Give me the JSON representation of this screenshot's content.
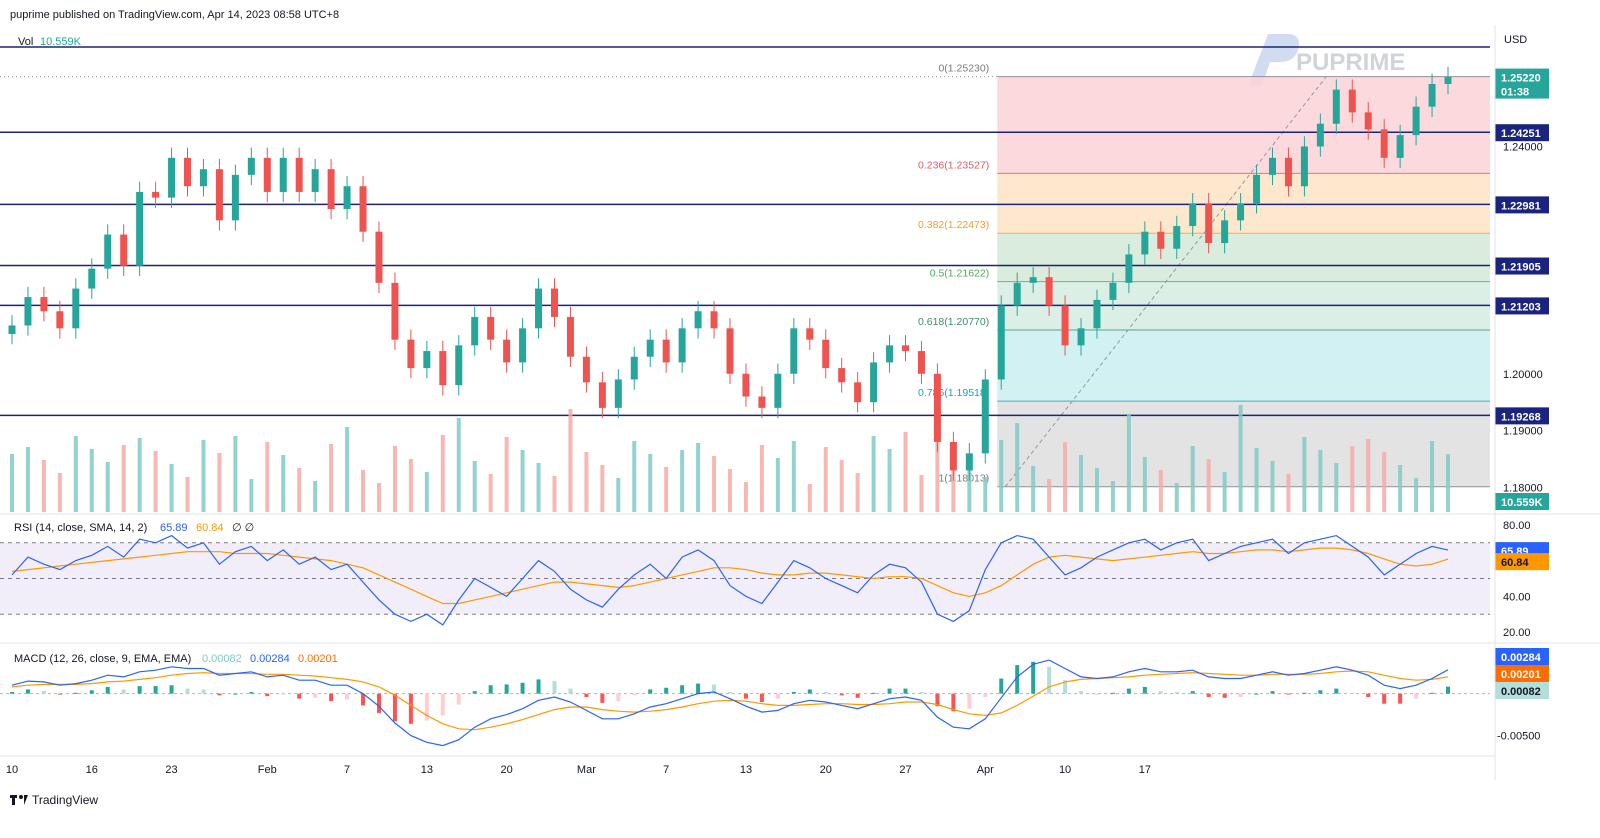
{
  "header": {
    "published": "puprime published on TradingView.com, Apr 14, 2023 08:58 UTC+8"
  },
  "footer": {
    "brand": "TradingView"
  },
  "watermark": {
    "text": "PUPRIME"
  },
  "colors": {
    "up": "#26a69a",
    "down": "#ef5350",
    "level_line": "#1a237e",
    "rsi_line": "#2962ff",
    "sma_line": "#ff9800",
    "macd_line": "#2962ff",
    "signal_line": "#ff9800"
  },
  "chart_data": [
    {
      "type": "candlestick",
      "pane": "price",
      "currency": "USD",
      "ylim": [
        1.1755,
        1.2612
      ],
      "y_ticks": [
        "1.24000",
        "1.20000",
        "1.19000",
        "1.18000"
      ],
      "y_tick_values": [
        1.24,
        1.2,
        1.19,
        1.18
      ],
      "x_ticks": [
        "10",
        "16",
        "23",
        "Feb",
        "7",
        "13",
        "20",
        "Mar",
        "7",
        "13",
        "20",
        "27",
        "Apr",
        "10",
        "17"
      ],
      "x_tick_index": [
        0,
        5,
        10,
        16,
        21,
        26,
        31,
        36,
        41,
        46,
        51,
        56,
        61,
        66,
        71
      ],
      "close_series": [
        1.2085,
        1.2135,
        1.211,
        1.208,
        1.215,
        1.2185,
        1.2245,
        1.219,
        1.232,
        1.231,
        1.238,
        1.233,
        1.236,
        1.227,
        1.235,
        1.238,
        1.232,
        1.238,
        1.232,
        1.236,
        1.229,
        1.233,
        1.225,
        1.216,
        1.206,
        1.201,
        1.204,
        1.198,
        1.205,
        1.21,
        1.206,
        1.202,
        1.208,
        1.215,
        1.21,
        1.203,
        1.1985,
        1.194,
        1.199,
        1.203,
        1.206,
        1.202,
        1.208,
        1.211,
        1.208,
        1.2,
        1.196,
        1.194,
        1.2,
        1.208,
        1.206,
        1.201,
        1.1985,
        1.195,
        1.202,
        1.205,
        1.204,
        1.2,
        1.188,
        1.183,
        1.186,
        1.199,
        1.212,
        1.216,
        1.217,
        1.212,
        1.205,
        1.208,
        1.213,
        1.216,
        1.221,
        1.225,
        1.222,
        1.226,
        1.23,
        1.223,
        1.227,
        1.23,
        1.235,
        1.238,
        1.233,
        1.24,
        1.244,
        1.25,
        1.246,
        1.243,
        1.238,
        1.242,
        1.247,
        1.251,
        1.2522
      ],
      "last_price": "1.25220",
      "last_countdown": "01:38",
      "price_levels": [
        {
          "label": "1.24251",
          "value": 1.24251
        },
        {
          "label": "1.22981",
          "value": 1.22981
        },
        {
          "label": "1.21905",
          "value": 1.21905
        },
        {
          "label": "1.21203",
          "value": 1.21203
        },
        {
          "label": "1.19268",
          "value": 1.19268
        }
      ],
      "top_line_value": 1.2575,
      "fibonacci": [
        {
          "label": "0(1.25230)",
          "ratio": 0,
          "value": 1.2523
        },
        {
          "label": "0.236(1.23527)",
          "ratio": 0.236,
          "value": 1.23527
        },
        {
          "label": "0.382(1.22473)",
          "ratio": 0.382,
          "value": 1.22473
        },
        {
          "label": "0.5(1.21622)",
          "ratio": 0.5,
          "value": 1.21622
        },
        {
          "label": "0.618(1.20770)",
          "ratio": 0.618,
          "value": 1.2077
        },
        {
          "label": "0.786(1.19518)",
          "ratio": 0.786,
          "value": 1.19518
        },
        {
          "label": "1(1.18013)",
          "ratio": 1,
          "value": 1.18013
        }
      ],
      "fib_zone_colors": [
        "#fbd5d8",
        "#fde5c8",
        "#d6ead9",
        "#d7ede4",
        "#cdeff1",
        "#e0e0e0"
      ],
      "fib_label_colors": [
        "#787b86",
        "#e05b67",
        "#f59d2a",
        "#4caf50",
        "#3d8f6a",
        "#17a2b8",
        "#787b86"
      ],
      "fib_start_index": 62
    },
    {
      "type": "bar",
      "pane": "volume",
      "legend": "Vol",
      "legend_value": "10.559K",
      "last_label": "10.559K"
    },
    {
      "type": "line",
      "pane": "rsi",
      "legend": "RSI (14, close, SMA, 14, 2)",
      "legend_rsi": "65.89",
      "legend_sma": "60.84",
      "legend_extra": "∅ ∅",
      "ylim": [
        15,
        85
      ],
      "y_ticks": [
        "80.00",
        "40.00",
        "20.00"
      ],
      "y_tick_values": [
        80,
        40,
        20
      ],
      "band": [
        30,
        70
      ],
      "rsi": [
        52,
        62,
        58,
        55,
        60,
        63,
        68,
        62,
        72,
        70,
        74,
        67,
        70,
        58,
        65,
        68,
        60,
        66,
        58,
        62,
        55,
        58,
        48,
        38,
        30,
        26,
        30,
        24,
        38,
        50,
        45,
        40,
        50,
        60,
        54,
        44,
        38,
        34,
        44,
        52,
        58,
        50,
        62,
        66,
        60,
        46,
        40,
        36,
        48,
        60,
        56,
        50,
        46,
        42,
        52,
        58,
        56,
        48,
        30,
        26,
        32,
        55,
        70,
        74,
        72,
        62,
        52,
        56,
        62,
        66,
        70,
        72,
        66,
        70,
        72,
        60,
        64,
        68,
        70,
        72,
        64,
        70,
        72,
        74,
        68,
        62,
        52,
        58,
        64,
        68,
        65.89
      ],
      "sma": [
        54,
        55,
        56,
        57,
        58,
        59,
        60,
        61,
        62,
        63,
        64,
        65,
        65,
        65,
        64,
        64,
        64,
        63,
        62,
        61,
        60,
        58,
        56,
        52,
        48,
        44,
        40,
        36,
        36,
        38,
        40,
        42,
        44,
        46,
        48,
        48,
        47,
        46,
        45,
        46,
        48,
        50,
        52,
        54,
        56,
        56,
        55,
        53,
        52,
        52,
        53,
        53,
        52,
        51,
        50,
        51,
        51,
        50,
        46,
        42,
        40,
        42,
        46,
        52,
        58,
        62,
        63,
        62,
        61,
        60,
        61,
        62,
        63,
        64,
        65,
        64,
        64,
        65,
        66,
        66,
        65,
        66,
        67,
        67,
        66,
        64,
        61,
        58,
        57,
        58,
        60.84
      ],
      "last_rsi_label": "65.89",
      "last_sma_label": "60.84"
    },
    {
      "type": "line",
      "pane": "macd",
      "legend": "MACD (12, 26, close, 9, EMA, EMA)",
      "legend_hist": "0.00082",
      "legend_macd": "0.00284",
      "legend_signal": "0.00201",
      "ylim": [
        -0.0072,
        0.0058
      ],
      "y_ticks": [
        "-0.00500"
      ],
      "y_tick_values": [
        -0.005
      ],
      "macd": [
        0.001,
        0.0015,
        0.0014,
        0.001,
        0.0012,
        0.0016,
        0.0022,
        0.002,
        0.0026,
        0.0028,
        0.0032,
        0.003,
        0.003,
        0.0022,
        0.0024,
        0.0026,
        0.002,
        0.0022,
        0.0016,
        0.0016,
        0.001,
        0.001,
        0.0,
        -0.0015,
        -0.0035,
        -0.005,
        -0.0058,
        -0.0062,
        -0.0055,
        -0.004,
        -0.003,
        -0.0025,
        -0.0018,
        -0.0008,
        -0.0004,
        -0.001,
        -0.002,
        -0.003,
        -0.003,
        -0.0024,
        -0.0016,
        -0.0012,
        -0.0006,
        0.0,
        0.0002,
        -0.0006,
        -0.0015,
        -0.0022,
        -0.002,
        -0.0012,
        -0.0008,
        -0.001,
        -0.0014,
        -0.0018,
        -0.0012,
        -0.0006,
        -0.0004,
        -0.0008,
        -0.0028,
        -0.004,
        -0.0042,
        -0.003,
        -0.0005,
        0.002,
        0.0035,
        0.004,
        0.003,
        0.002,
        0.0018,
        0.002,
        0.0026,
        0.003,
        0.0026,
        0.0026,
        0.0028,
        0.002,
        0.0018,
        0.0018,
        0.0022,
        0.0026,
        0.0022,
        0.0024,
        0.0028,
        0.0032,
        0.0028,
        0.0022,
        0.001,
        0.0006,
        0.001,
        0.0018,
        0.00284
      ],
      "signal": [
        0.0008,
        0.001,
        0.0011,
        0.0011,
        0.0011,
        0.0012,
        0.0014,
        0.0015,
        0.0017,
        0.0019,
        0.0022,
        0.0024,
        0.0025,
        0.0024,
        0.0024,
        0.0024,
        0.0023,
        0.0023,
        0.0022,
        0.0021,
        0.0019,
        0.0017,
        0.0014,
        0.0008,
        -0.0002,
        -0.0014,
        -0.0026,
        -0.0036,
        -0.0042,
        -0.0043,
        -0.004,
        -0.0036,
        -0.0031,
        -0.0025,
        -0.0019,
        -0.0016,
        -0.0016,
        -0.0019,
        -0.0021,
        -0.0022,
        -0.0021,
        -0.0019,
        -0.0016,
        -0.0012,
        -0.0009,
        -0.0008,
        -0.0009,
        -0.0012,
        -0.0014,
        -0.0014,
        -0.0013,
        -0.0012,
        -0.0012,
        -0.0013,
        -0.0013,
        -0.0012,
        -0.001,
        -0.001,
        -0.0013,
        -0.0019,
        -0.0024,
        -0.0026,
        -0.0023,
        -0.0014,
        -0.0003,
        0.0008,
        0.0014,
        0.0017,
        0.0018,
        0.0019,
        0.002,
        0.0022,
        0.0023,
        0.0024,
        0.0025,
        0.0024,
        0.0023,
        0.0022,
        0.0022,
        0.0023,
        0.0023,
        0.0023,
        0.0024,
        0.0026,
        0.0027,
        0.0026,
        0.0022,
        0.0018,
        0.0016,
        0.0017,
        0.00201
      ],
      "last_macd_label": "0.00284",
      "last_signal_label": "0.00201",
      "last_hist_label": "0.00082"
    }
  ]
}
